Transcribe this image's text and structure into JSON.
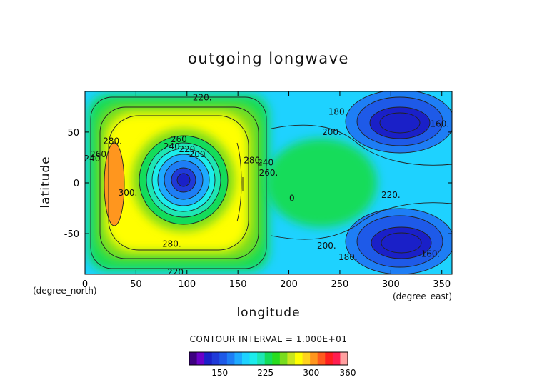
{
  "page": {
    "title": "outgoing longwave",
    "xlabel": "longitude",
    "ylabel": "latitude",
    "x_unit": "(degree_east)",
    "y_unit": "(degree_north)",
    "contour_interval_text": "CONTOUR INTERVAL = 1.000E+01"
  },
  "chart_data": {
    "type": "heatmap",
    "title": "outgoing longwave",
    "xlabel": "longitude",
    "ylabel": "latitude",
    "xlim": [
      0,
      360
    ],
    "ylim": [
      -90,
      90
    ],
    "x_ticks": [
      0,
      50,
      100,
      150,
      200,
      250,
      300,
      350
    ],
    "y_ticks": [
      -50,
      0,
      50
    ],
    "contour_interval": 10,
    "contour_labels": [
      {
        "text": "220.",
        "x": 115,
        "y": 84
      },
      {
        "text": "260",
        "x": 92,
        "y": 43
      },
      {
        "text": "240",
        "x": 85,
        "y": 36
      },
      {
        "text": "220",
        "x": 100,
        "y": 33
      },
      {
        "text": "200",
        "x": 110,
        "y": 28
      },
      {
        "text": "280.",
        "x": 27,
        "y": 41
      },
      {
        "text": "260",
        "x": 13,
        "y": 28
      },
      {
        "text": "240",
        "x": 7,
        "y": 24
      },
      {
        "text": "300.",
        "x": 42,
        "y": -10
      },
      {
        "text": "280.",
        "x": 165,
        "y": 22
      },
      {
        "text": "240",
        "x": 177,
        "y": 20
      },
      {
        "text": "260.",
        "x": 180,
        "y": 10
      },
      {
        "text": "280.",
        "x": 85,
        "y": -60
      },
      {
        "text": "220.",
        "x": 90,
        "y": -88
      },
      {
        "text": "180.",
        "x": 248,
        "y": 70
      },
      {
        "text": "200.",
        "x": 242,
        "y": 50
      },
      {
        "text": "160.",
        "x": 348,
        "y": 58
      },
      {
        "text": "0",
        "x": 203,
        "y": -15
      },
      {
        "text": "220.",
        "x": 300,
        "y": -12
      },
      {
        "text": "200.",
        "x": 237,
        "y": -62
      },
      {
        "text": "180.",
        "x": 258,
        "y": -73
      },
      {
        "text": "160.",
        "x": 339,
        "y": -70
      }
    ],
    "colorbar": {
      "ticks": [
        150,
        225,
        300,
        360
      ],
      "range": [
        100,
        360
      ],
      "colors": [
        "#3d0080",
        "#6a00c8",
        "#1a20c8",
        "#1f3ad8",
        "#1e5ae8",
        "#1e7ef5",
        "#1eaaff",
        "#1ed2ff",
        "#1cecec",
        "#1ee6b4",
        "#14dc5a",
        "#28dc1e",
        "#78dc1e",
        "#c8e61e",
        "#ffff00",
        "#ffd21e",
        "#ff961e",
        "#ff5a1e",
        "#ff1e1e",
        "#ff1e50",
        "#ffa0a0"
      ]
    }
  }
}
